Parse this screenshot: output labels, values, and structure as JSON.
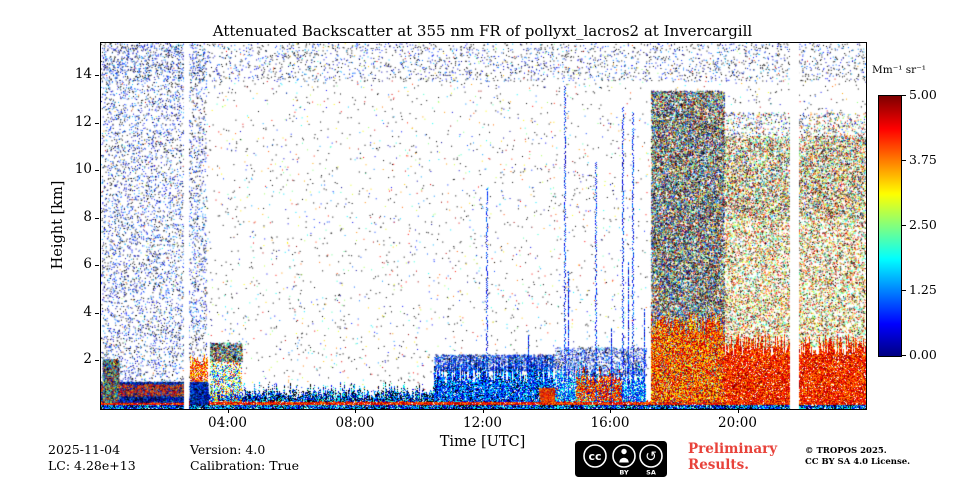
{
  "colors": {
    "preliminary_red": "#e8423a",
    "axis": "#000000",
    "badge_bg": "#000000",
    "badge_fg": "#ffffff"
  },
  "footer": {
    "date": "2025-11-04",
    "lc": "LC: 4.28e+13",
    "version": "Version: 4.0",
    "calibration": "Calibration: True",
    "preliminary_line1": "Preliminary",
    "preliminary_line2": "Results.",
    "copyright_line1": "© TROPOS 2025.",
    "copyright_line2": "CC BY SA 4.0 License.",
    "badge": {
      "cc": "cc",
      "by": "BY",
      "sa": "SA",
      "sa_icon": "↺"
    }
  },
  "chart_data": {
    "type": "heatmap",
    "title": "Attenuated Backscatter at 355 nm FR of pollyxt_lacros2 at Invercargill",
    "xlabel": "Time [UTC]",
    "ylabel": "Height [km]",
    "x_range_hours": [
      0,
      24
    ],
    "y_range_km": [
      0,
      15.4
    ],
    "grid": false,
    "x_ticks": [
      {
        "value": 4,
        "label": "04:00"
      },
      {
        "value": 8,
        "label": "08:00"
      },
      {
        "value": 12,
        "label": "12:00"
      },
      {
        "value": 16,
        "label": "16:00"
      },
      {
        "value": 20,
        "label": "20:00"
      }
    ],
    "y_ticks": [
      {
        "value": 2,
        "label": "2"
      },
      {
        "value": 4,
        "label": "4"
      },
      {
        "value": 6,
        "label": "6"
      },
      {
        "value": 8,
        "label": "8"
      },
      {
        "value": 10,
        "label": "10"
      },
      {
        "value": 12,
        "label": "12"
      },
      {
        "value": 14,
        "label": "14"
      }
    ],
    "colorbar": {
      "unit": "Mm⁻¹ sr⁻¹",
      "min": 0,
      "max": 5,
      "colormap": "jet",
      "ticks": [
        {
          "value": 5,
          "label": "5.00"
        },
        {
          "value": 3.75,
          "label": "3.75"
        },
        {
          "value": 2.5,
          "label": "2.50"
        },
        {
          "value": 1.25,
          "label": "1.25"
        },
        {
          "value": 0,
          "label": "0.00"
        }
      ]
    },
    "features": [
      {
        "type": "speckle",
        "t0": 0,
        "t1": 24,
        "h0": 0.4,
        "h1": 15.4,
        "count": 5000,
        "bias": "mix",
        "black": 0.45
      },
      {
        "type": "speckle",
        "t0": 0,
        "t1": 3.3,
        "h0": 0,
        "h1": 15.4,
        "count": 5500,
        "bias": "cold",
        "black": 0.35
      },
      {
        "type": "speckle",
        "t0": 0,
        "t1": 24,
        "h0": 13.8,
        "h1": 15.4,
        "count": 2500,
        "bias": "cold",
        "black": 0.5
      },
      {
        "type": "band",
        "t0": 0,
        "t1": 24,
        "h0": 0.16,
        "h1": 0.34,
        "v0": 0.72,
        "v1": 1.0,
        "density": 0.95,
        "jitter": 0.05
      },
      {
        "type": "band",
        "t0": 0,
        "t1": 24,
        "h0": 0,
        "h1": 0.16,
        "v0": 0,
        "v1": 0.45,
        "density": 0.95,
        "jitter": 0,
        "black": 0.25
      },
      {
        "type": "band",
        "t0": 0,
        "t1": 10.5,
        "h0": 0.34,
        "h1": 0.6,
        "v0": 0,
        "v1": 0.4,
        "density": 0.85,
        "jitter": 0.2,
        "black": 0.3
      },
      {
        "type": "speckle",
        "t0": 0,
        "t1": 2.6,
        "h0": 0.3,
        "h1": 1.15,
        "count": 6000,
        "bias": "cold",
        "black": 0.35
      },
      {
        "type": "speckle",
        "t0": 0,
        "t1": 2.6,
        "h0": 0.55,
        "h1": 1.05,
        "count": 900,
        "bias": "warm",
        "black": 0
      },
      {
        "type": "speckle",
        "t0": 0.05,
        "t1": 0.55,
        "h0": 0.3,
        "h1": 2.1,
        "count": 2200,
        "bias": "mix",
        "black": 0.2
      },
      {
        "type": "band",
        "t0": 2.78,
        "t1": 3.35,
        "h0": 1.15,
        "h1": 2.05,
        "v0": 0.6,
        "v1": 0.95,
        "density": 0.8,
        "jitter": 0.25
      },
      {
        "type": "speckle",
        "t0": 2.78,
        "t1": 3.35,
        "h0": 0.2,
        "h1": 1.15,
        "count": 1500,
        "bias": "cold",
        "black": 0.3
      },
      {
        "type": "band",
        "t0": 3.42,
        "t1": 4.42,
        "h0": 0.3,
        "h1": 2.2,
        "v0": 0.05,
        "v1": 0.9,
        "density": 0.55,
        "jitter": 0.5
      },
      {
        "type": "speckle",
        "t0": 3.42,
        "t1": 4.42,
        "h0": 2.0,
        "h1": 2.8,
        "count": 800,
        "bias": "mix",
        "black": 0.3
      },
      {
        "type": "band",
        "t0": 4.42,
        "t1": 10.45,
        "h0": 0.3,
        "h1": 0.75,
        "v0": 0,
        "v1": 0.5,
        "density": 0.7,
        "jitter": 0.4,
        "black": 0.3
      },
      {
        "type": "band",
        "t0": 10.45,
        "t1": 14.25,
        "h0": 0.3,
        "h1": 1.7,
        "v0": 0.02,
        "v1": 0.4,
        "density": 0.92,
        "jitter": 0.6,
        "black": 0.15
      },
      {
        "type": "speckle",
        "t0": 10.45,
        "t1": 14.25,
        "h0": 1.6,
        "h1": 2.3,
        "count": 1800,
        "bias": "cold",
        "black": 0.2
      },
      {
        "type": "speckle",
        "t0": 13.75,
        "t1": 14.3,
        "h0": 0.3,
        "h1": 0.9,
        "count": 800,
        "bias": "warm",
        "black": 0
      },
      {
        "type": "band",
        "t0": 14.25,
        "t1": 17.1,
        "h0": 0.3,
        "h1": 1.5,
        "v0": 0.02,
        "v1": 0.5,
        "density": 0.8,
        "jitter": 0.5
      },
      {
        "type": "band",
        "t0": 14.9,
        "t1": 16.35,
        "h0": 0.35,
        "h1": 1.45,
        "v0": 0.65,
        "v1": 1.0,
        "density": 0.75,
        "jitter": 0.35
      },
      {
        "type": "speckle",
        "t0": 14.25,
        "t1": 17.1,
        "h0": 1.4,
        "h1": 2.6,
        "count": 1200,
        "bias": "cold",
        "black": 0.25
      },
      {
        "type": "spike",
        "t": 12.08,
        "htop": 9.3,
        "w": 2
      },
      {
        "type": "spike",
        "t": 13.4,
        "htop": 3.1,
        "w": 1
      },
      {
        "type": "spike",
        "t": 14.52,
        "htop": 13.6,
        "w": 2
      },
      {
        "type": "spike",
        "t": 14.66,
        "htop": 5.8,
        "w": 1
      },
      {
        "type": "spike",
        "t": 15.5,
        "htop": 10.4,
        "w": 2
      },
      {
        "type": "spike",
        "t": 16.0,
        "htop": 3.4,
        "w": 1
      },
      {
        "type": "spike",
        "t": 16.34,
        "htop": 12.7,
        "w": 2
      },
      {
        "type": "spike",
        "t": 16.52,
        "htop": 6.2,
        "w": 1
      },
      {
        "type": "spike",
        "t": 16.66,
        "htop": 12.5,
        "w": 2
      },
      {
        "type": "spike",
        "t": 17.05,
        "htop": 4.2,
        "w": 1
      },
      {
        "type": "speckle",
        "t0": 17.25,
        "t1": 19.55,
        "h0": 0.3,
        "h1": 13.4,
        "count": 26000,
        "bias": "mix",
        "black": 0.3
      },
      {
        "type": "band",
        "t0": 17.25,
        "t1": 19.55,
        "h0": 0.3,
        "h1": 3.6,
        "v0": 0.6,
        "v1": 1.0,
        "density": 0.8,
        "jitter": 0.5
      },
      {
        "type": "speckle",
        "t0": 19.55,
        "t1": 24,
        "h0": 2.6,
        "h1": 11.5,
        "count": 14000,
        "bias": "warmmix",
        "black": 0.18
      },
      {
        "type": "speckle",
        "t0": 19.55,
        "t1": 24,
        "h0": 8,
        "h1": 12.5,
        "count": 3000,
        "bias": "mix",
        "black": 0.3
      },
      {
        "type": "band",
        "t0": 19.55,
        "t1": 24,
        "h0": 0.3,
        "h1": 2.7,
        "v0": 0.7,
        "v1": 1.0,
        "density": 0.93,
        "jitter": 0.45
      },
      {
        "type": "gap",
        "t0": 2.6,
        "t1": 2.76,
        "h0": 0,
        "h1": 15.4
      },
      {
        "type": "gap",
        "t0": 21.62,
        "t1": 21.9,
        "h0": 0,
        "h1": 15.4
      }
    ]
  }
}
